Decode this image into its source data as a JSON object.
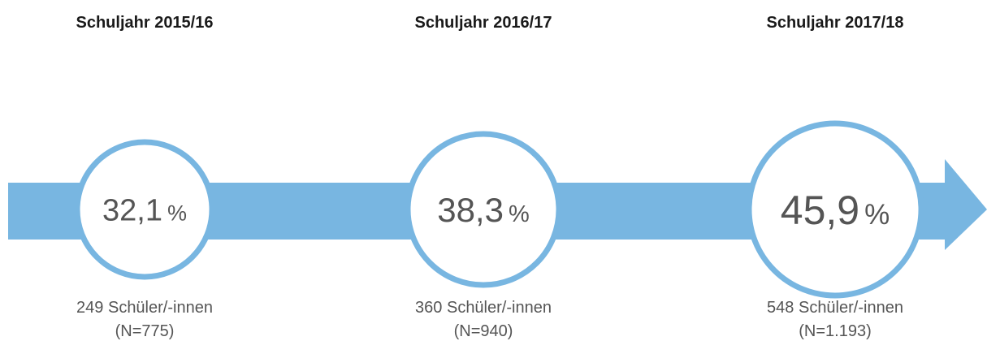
{
  "stages": [
    {
      "year": "Schuljahr 2015/16",
      "percent": "32,1",
      "unit": "%",
      "students": "249 Schüler/-innen",
      "n": "(N=775)"
    },
    {
      "year": "Schuljahr 2016/17",
      "percent": "38,3",
      "unit": "%",
      "students": "360 Schüler/-innen",
      "n": "(N=940)"
    },
    {
      "year": "Schuljahr 2017/18",
      "percent": "45,9",
      "unit": "%",
      "students": "548 Schüler/-innen",
      "n": "(N=1.193)"
    }
  ]
}
